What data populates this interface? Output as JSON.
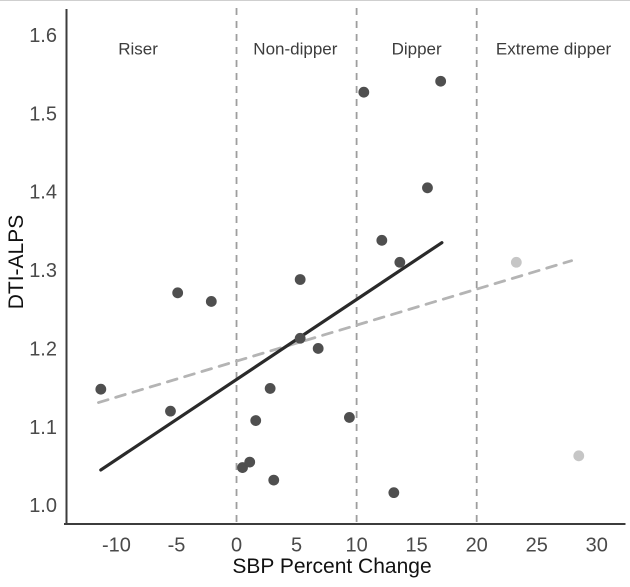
{
  "figure": {
    "background": "#ffffff"
  },
  "chart_data": {
    "type": "scatter",
    "title": "",
    "xlabel": "SBP Percent Change",
    "ylabel": "DTI-ALPS",
    "xlim": [
      -14.2,
      32.1
    ],
    "ylim": [
      0.976,
      1.637
    ],
    "grid": false,
    "legend": "none",
    "x_ticks": [
      {
        "v": -10,
        "label": "-10"
      },
      {
        "v": -5,
        "label": "-5"
      },
      {
        "v": 0,
        "label": "0"
      },
      {
        "v": 5,
        "label": "5"
      },
      {
        "v": 10,
        "label": "10"
      },
      {
        "v": 15,
        "label": "15"
      },
      {
        "v": 20,
        "label": "20"
      },
      {
        "v": 25,
        "label": "25"
      },
      {
        "v": 30,
        "label": "30"
      }
    ],
    "y_ticks": [
      {
        "v": 1.0,
        "label": "1.0"
      },
      {
        "v": 1.1,
        "label": "1.1"
      },
      {
        "v": 1.2,
        "label": "1.2"
      },
      {
        "v": 1.3,
        "label": "1.3"
      },
      {
        "v": 1.4,
        "label": "1.4"
      },
      {
        "v": 1.5,
        "label": "1.5"
      },
      {
        "v": 1.6,
        "label": "1.6"
      }
    ],
    "region_dividers_x": [
      0,
      10,
      20
    ],
    "region_labels": [
      {
        "label": "Riser",
        "x": -8.2,
        "y": 1.583
      },
      {
        "label": "Non-dipper",
        "x": 4.9,
        "y": 1.583
      },
      {
        "label": "Dipper",
        "x": 15.0,
        "y": 1.583
      },
      {
        "label": "Extreme dipper",
        "x": 26.4,
        "y": 1.583
      }
    ],
    "series": [
      {
        "name": "dti-alps-points",
        "color": "#4f4f4f",
        "marker_radius": 5.4,
        "points": [
          [
            -11.3,
            1.148
          ],
          [
            -5.5,
            1.12
          ],
          [
            -4.9,
            1.271
          ],
          [
            -2.1,
            1.26
          ],
          [
            0.5,
            1.048
          ],
          [
            1.1,
            1.055
          ],
          [
            1.6,
            1.108
          ],
          [
            2.8,
            1.149
          ],
          [
            3.1,
            1.032
          ],
          [
            5.3,
            1.288
          ],
          [
            5.3,
            1.213
          ],
          [
            6.8,
            1.2
          ],
          [
            9.4,
            1.112
          ],
          [
            10.6,
            1.527
          ],
          [
            12.1,
            1.338
          ],
          [
            13.1,
            1.016
          ],
          [
            13.6,
            1.31
          ],
          [
            15.9,
            1.405
          ],
          [
            17.0,
            1.541
          ]
        ]
      },
      {
        "name": "extreme-dipper-points",
        "color": "#c6c6c6",
        "marker_radius": 5.4,
        "points": [
          [
            23.3,
            1.31
          ],
          [
            28.5,
            1.063
          ]
        ]
      }
    ],
    "trend_lines": [
      {
        "name": "solid-fit-line",
        "style": "solid",
        "color": "#2a2a2a",
        "width": 3.2,
        "x1": -11.3,
        "y1": 1.045,
        "x2": 17.1,
        "y2": 1.335
      },
      {
        "name": "dashed-fit-line",
        "style": "dashed",
        "color": "#b4b4b4",
        "width": 2.8,
        "x1": -11.5,
        "y1": 1.131,
        "x2": 27.9,
        "y2": 1.312
      }
    ],
    "style": {
      "axis_color": "#3c3c3c",
      "tick_label_color": "#4a4a4a",
      "region_label_color": "#3c3c3c",
      "title_color": "#111111",
      "divider_color": "#9e9e9e"
    }
  }
}
